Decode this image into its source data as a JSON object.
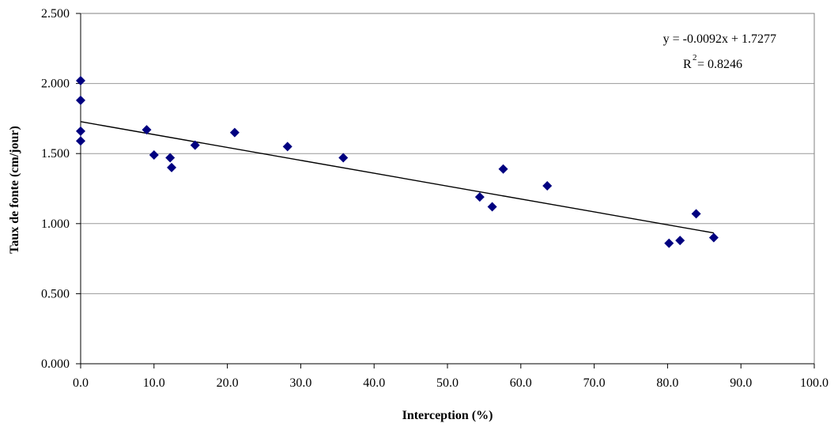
{
  "chart_data": {
    "type": "scatter",
    "xlabel": "Interception (%)",
    "ylabel": "Taux de fonte (cm/jour)",
    "xlim": [
      0,
      100
    ],
    "ylim": [
      0,
      2.5
    ],
    "x_ticks": [
      "0.0",
      "10.0",
      "20.0",
      "30.0",
      "40.0",
      "50.0",
      "60.0",
      "70.0",
      "80.0",
      "90.0",
      "100.0"
    ],
    "y_ticks": [
      "0.000",
      "0.500",
      "1.000",
      "1.500",
      "2.000",
      "2.500"
    ],
    "grid": "horizontal",
    "marker": "diamond",
    "marker_color": "#000080",
    "series": [
      {
        "points": [
          [
            0.0,
            2.02
          ],
          [
            0.0,
            1.88
          ],
          [
            0.0,
            1.66
          ],
          [
            0.0,
            1.59
          ],
          [
            9.0,
            1.67
          ],
          [
            10.0,
            1.49
          ],
          [
            12.2,
            1.47
          ],
          [
            12.4,
            1.4
          ],
          [
            15.6,
            1.56
          ],
          [
            21.0,
            1.65
          ],
          [
            28.2,
            1.55
          ],
          [
            35.8,
            1.47
          ],
          [
            54.4,
            1.19
          ],
          [
            56.1,
            1.12
          ],
          [
            57.6,
            1.39
          ],
          [
            63.6,
            1.27
          ],
          [
            80.2,
            0.86
          ],
          [
            81.7,
            0.88
          ],
          [
            83.9,
            1.07
          ],
          [
            86.3,
            0.9
          ]
        ]
      }
    ],
    "trendline": {
      "slope": -0.0092,
      "intercept": 1.7277,
      "x_range": [
        0,
        86.3
      ],
      "equation": "y = -0.0092x + 1.7277",
      "r2_prefix": "R",
      "r2_sup": "2",
      "r2_value": " = 0.8246"
    }
  }
}
